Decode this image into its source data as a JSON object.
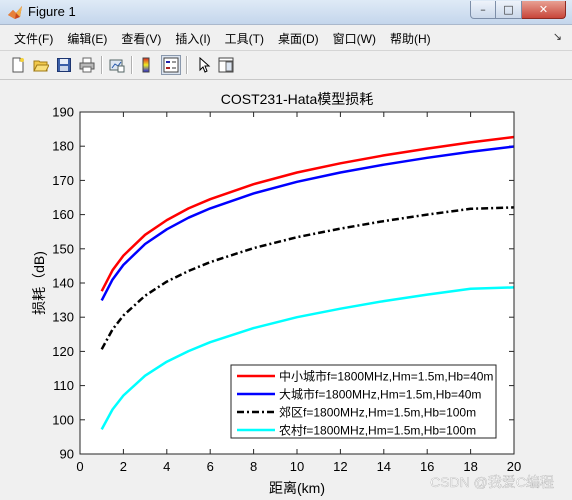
{
  "window": {
    "title": "Figure 1",
    "controls": {
      "minimize": "–",
      "maximize": "□",
      "close": "✕"
    }
  },
  "menubar": {
    "items": [
      {
        "label": "文件(F)"
      },
      {
        "label": "编辑(E)"
      },
      {
        "label": "查看(V)"
      },
      {
        "label": "插入(I)"
      },
      {
        "label": "工具(T)"
      },
      {
        "label": "桌面(D)"
      },
      {
        "label": "窗口(W)"
      },
      {
        "label": "帮助(H)"
      }
    ],
    "dock_arrow": "↘"
  },
  "toolbar": {
    "buttons": [
      "new-figure-icon",
      "open-file-icon",
      "save-icon",
      "print-icon",
      "link-plot-icon",
      "colorbar-icon",
      "legend-icon",
      "pointer-icon",
      "property-editor-icon"
    ]
  },
  "watermark": "CSDN @我爱C编程",
  "colors": {
    "series_red": "#ff0000",
    "series_blue": "#0000ff",
    "series_black": "#000000",
    "series_cyan": "#00ffff",
    "axes_bg": "#ffffff",
    "figure_bg": "#f0f0f0"
  },
  "chart_data": {
    "type": "line",
    "title": "COST231-Hata模型损耗",
    "xlabel": "距离(km)",
    "ylabel": "损耗（dB)",
    "xlim": [
      0,
      20
    ],
    "ylim": [
      90,
      190
    ],
    "xticks": [
      "0",
      "2",
      "4",
      "6",
      "8",
      "10",
      "12",
      "14",
      "16",
      "18",
      "20"
    ],
    "yticks": [
      "90",
      "100",
      "110",
      "120",
      "130",
      "140",
      "150",
      "160",
      "170",
      "180",
      "190"
    ],
    "grid": false,
    "legend_position": "bottom-right",
    "x": [
      1,
      1.5,
      2,
      3,
      4,
      5,
      6,
      8,
      10,
      12,
      14,
      16,
      18,
      20
    ],
    "series": [
      {
        "name": "中小城市f=1800MHz,Hm=1.5m,Hb=40m",
        "color": "#ff0000",
        "style": "solid",
        "values": [
          137.6,
          143.7,
          148.0,
          154.1,
          158.4,
          161.8,
          164.5,
          168.9,
          172.3,
          175.0,
          177.3,
          179.3,
          181.1,
          182.7
        ]
      },
      {
        "name": "大城市f=1800MHz,Hm=1.5m,Hb=40m",
        "color": "#0000ff",
        "style": "solid",
        "values": [
          134.9,
          141.0,
          145.3,
          151.4,
          155.7,
          159.1,
          161.8,
          166.2,
          169.6,
          172.3,
          174.6,
          176.6,
          178.4,
          179.9
        ]
      },
      {
        "name": "郊区f=1800MHz,Hm=1.5m,Hb=100m",
        "color": "#000000",
        "style": "dashdot",
        "values": [
          120.6,
          126.4,
          130.5,
          136.3,
          140.4,
          143.5,
          146.1,
          150.2,
          153.4,
          155.9,
          158.1,
          160.0,
          161.7,
          162.1
        ]
      },
      {
        "name": "农村f=1800MHz,Hm=1.5m,Hb=100m",
        "color": "#00ffff",
        "style": "solid",
        "values": [
          97.2,
          103.0,
          107.1,
          112.9,
          117.0,
          120.1,
          122.7,
          126.8,
          130.0,
          132.5,
          134.7,
          136.6,
          138.3,
          138.7
        ]
      }
    ]
  }
}
